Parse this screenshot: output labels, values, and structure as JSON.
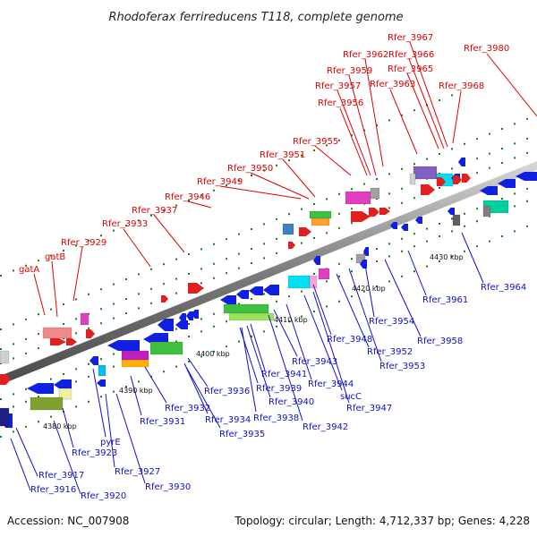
{
  "title": "Rhodoferax ferrireducens T118, complete genome",
  "footer": {
    "accession": "Accession: NC_007908",
    "summary": "Topology: circular; Length: 4,712,337 bp; Genes: 4,228"
  },
  "colors": {
    "forward_label": "#e00000",
    "reverse_label": "#1010cc",
    "backbone": "#8c8c8c",
    "tick": "#1a7a1a"
  },
  "scale_labels": [
    {
      "id": "kbp-4380",
      "text": "4380 kbp"
    },
    {
      "id": "kbp-4390",
      "text": "4390 kbp"
    },
    {
      "id": "kbp-4400",
      "text": "4400 kbp"
    },
    {
      "id": "kbp-4410",
      "text": "4410 kbp"
    },
    {
      "id": "kbp-4420",
      "text": "4420 kbp"
    },
    {
      "id": "kbp-4430",
      "text": "4430 kbp"
    }
  ],
  "top_labels": [
    {
      "id": "gatA",
      "text": "gatA"
    },
    {
      "id": "gatB",
      "text": "gatB"
    },
    {
      "id": "rfer3929",
      "text": "Rfer_3929"
    },
    {
      "id": "rfer3933",
      "text": "Rfer_3933"
    },
    {
      "id": "rfer3937",
      "text": "Rfer_3937"
    },
    {
      "id": "rfer3946",
      "text": "Rfer_3946"
    },
    {
      "id": "rfer3949",
      "text": "Rfer_3949"
    },
    {
      "id": "rfer3950",
      "text": "Rfer_3950"
    },
    {
      "id": "rfer3951",
      "text": "Rfer_3951"
    },
    {
      "id": "rfer3955",
      "text": "Rfer_3955"
    },
    {
      "id": "rfer3956",
      "text": "Rfer_3956"
    },
    {
      "id": "rfer3957",
      "text": "Rfer_3957"
    },
    {
      "id": "rfer3959",
      "text": "Rfer_3959"
    },
    {
      "id": "rfer3962",
      "text": "Rfer_3962"
    },
    {
      "id": "rfer3963",
      "text": "Rfer_3963"
    },
    {
      "id": "rfer3965",
      "text": "Rfer_3965"
    },
    {
      "id": "rfer3966",
      "text": "Rfer_3966"
    },
    {
      "id": "rfer3967",
      "text": "Rfer_3967"
    },
    {
      "id": "rfer3968",
      "text": "Rfer_3968"
    },
    {
      "id": "rfer3980",
      "text": "Rfer_3980"
    }
  ],
  "bottom_labels": [
    {
      "id": "rfer3916",
      "text": "Rfer_3916"
    },
    {
      "id": "rfer3917",
      "text": "Rfer_3917"
    },
    {
      "id": "rfer3920",
      "text": "Rfer_3920"
    },
    {
      "id": "rfer3923",
      "text": "Rfer_3923"
    },
    {
      "id": "pyrE",
      "text": "pyrE"
    },
    {
      "id": "rfer3927",
      "text": "Rfer_3927"
    },
    {
      "id": "rfer3930",
      "text": "Rfer_3930"
    },
    {
      "id": "rfer3931",
      "text": "Rfer_3931"
    },
    {
      "id": "rfer3932",
      "text": "Rfer_3932"
    },
    {
      "id": "rfer3934",
      "text": "Rfer_3934"
    },
    {
      "id": "rfer3935",
      "text": "Rfer_3935"
    },
    {
      "id": "rfer3936",
      "text": "Rfer_3936"
    },
    {
      "id": "rfer3938",
      "text": "Rfer_3938"
    },
    {
      "id": "rfer3939",
      "text": "Rfer_3939"
    },
    {
      "id": "rfer3940",
      "text": "Rfer_3940"
    },
    {
      "id": "rfer3941",
      "text": "Rfer_3941"
    },
    {
      "id": "rfer3942",
      "text": "Rfer_3942"
    },
    {
      "id": "rfer3943",
      "text": "Rfer_3943"
    },
    {
      "id": "rfer3944",
      "text": "Rfer_3944"
    },
    {
      "id": "sucC",
      "text": "sucC"
    },
    {
      "id": "rfer3947",
      "text": "Rfer_3947"
    },
    {
      "id": "rfer3948",
      "text": "Rfer_3948"
    },
    {
      "id": "rfer3952",
      "text": "Rfer_3952"
    },
    {
      "id": "rfer3953",
      "text": "Rfer_3953"
    },
    {
      "id": "rfer3954",
      "text": "Rfer_3954"
    },
    {
      "id": "rfer3958",
      "text": "Rfer_3958"
    },
    {
      "id": "rfer3961",
      "text": "Rfer_3961"
    },
    {
      "id": "rfer3964",
      "text": "Rfer_3964"
    }
  ]
}
